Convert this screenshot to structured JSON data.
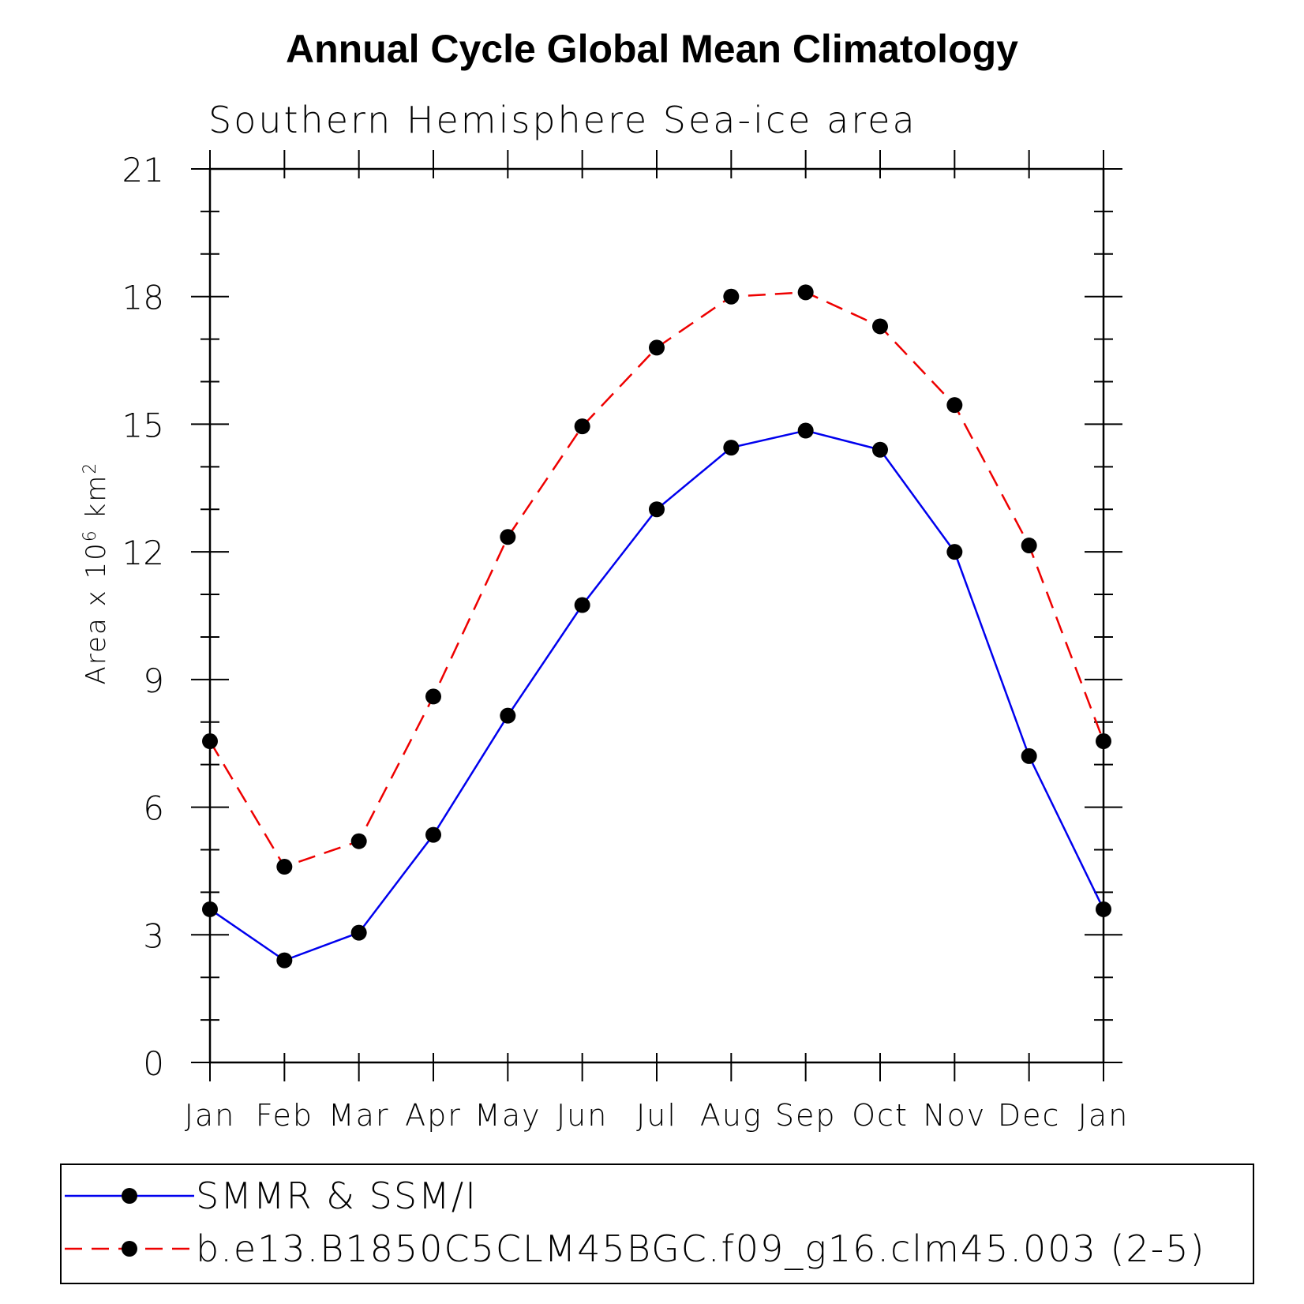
{
  "chart_data": {
    "type": "line",
    "title": "Annual Cycle Global Mean Climatology",
    "subtitle": "Southern Hemisphere Sea-ice area",
    "ylabel_parts": {
      "base": "Area x 10",
      "exp1": "6",
      "unit": " km",
      "exp2": "2"
    },
    "xlabel": "",
    "ylim": [
      0,
      21
    ],
    "yticks": [
      0,
      3,
      6,
      9,
      12,
      15,
      18,
      21
    ],
    "yminor_step": 1,
    "categories": [
      "Jan",
      "Feb",
      "Mar",
      "Apr",
      "May",
      "Jun",
      "Jul",
      "Aug",
      "Sep",
      "Oct",
      "Nov",
      "Dec",
      "Jan"
    ],
    "grid": false,
    "legend_position": "bottom",
    "series": [
      {
        "name": "SMMR & SSM/I",
        "color": "#0000ee",
        "dash": "solid",
        "marker": "filled-circle",
        "values": [
          3.6,
          2.4,
          3.05,
          5.35,
          8.15,
          10.75,
          13.0,
          14.45,
          14.85,
          14.4,
          12.0,
          7.2,
          3.6
        ]
      },
      {
        "name": "b.e13.B1850C5CLM45BGC.f09_g16.clm45.003 (2-5)",
        "color": "#ee0000",
        "dash": "dashed",
        "marker": "filled-circle",
        "values": [
          7.55,
          4.6,
          5.2,
          8.6,
          12.35,
          14.95,
          16.8,
          18.0,
          18.1,
          17.3,
          15.45,
          12.15,
          7.55
        ]
      }
    ]
  }
}
